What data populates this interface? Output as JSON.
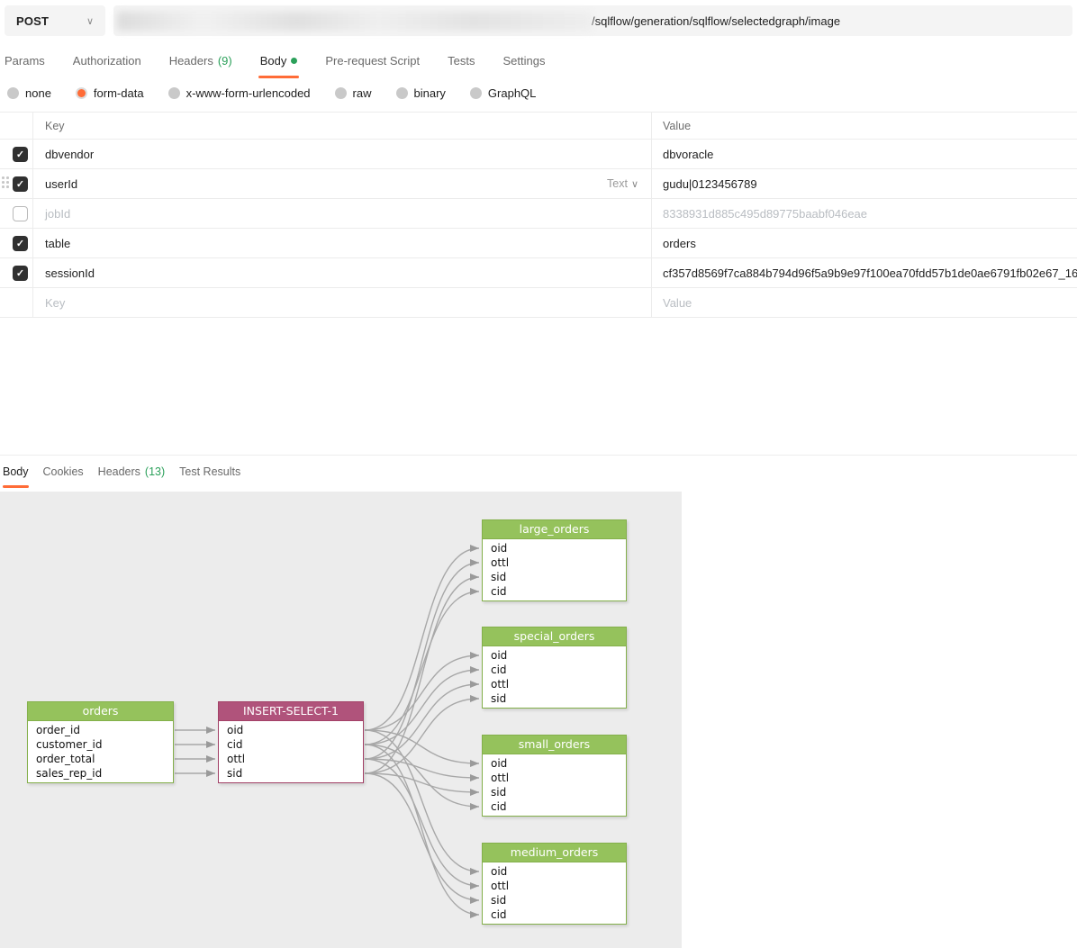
{
  "request": {
    "method": "POST",
    "url_path": "/sqlflow/generation/sqlflow/selectedgraph/image",
    "tabs": [
      {
        "label": "Params"
      },
      {
        "label": "Authorization"
      },
      {
        "label": "Headers",
        "count": "(9)"
      },
      {
        "label": "Body",
        "active": true,
        "dot": true
      },
      {
        "label": "Pre-request Script"
      },
      {
        "label": "Tests"
      },
      {
        "label": "Settings"
      }
    ],
    "body_modes": [
      {
        "label": "none"
      },
      {
        "label": "form-data",
        "selected": true
      },
      {
        "label": "x-www-form-urlencoded"
      },
      {
        "label": "raw"
      },
      {
        "label": "binary"
      },
      {
        "label": "GraphQL"
      }
    ],
    "kv_table": {
      "columns": {
        "key": "Key",
        "value": "Value"
      },
      "rows": [
        {
          "key": "dbvendor",
          "value": "dbvoracle",
          "checked": true
        },
        {
          "key": "userId",
          "value": "gudu|0123456789",
          "checked": true,
          "type_label": "Text"
        },
        {
          "key": "jobId",
          "value": "8338931d885c495d89775baabf046eae",
          "checked": false,
          "muted": true
        },
        {
          "key": "table",
          "value": "orders",
          "checked": true
        },
        {
          "key": "sessionId",
          "value": "cf357d8569f7ca884b794d96f5a9b9e97f100ea70fdd57b1de0ae6791fb02e67_16",
          "checked": true
        },
        {
          "placeholder_key": "Key",
          "placeholder_value": "Value",
          "placeholder": true
        }
      ]
    }
  },
  "response": {
    "tabs": [
      {
        "label": "Body",
        "active": true
      },
      {
        "label": "Cookies"
      },
      {
        "label": "Headers",
        "count": "(13)"
      },
      {
        "label": "Test Results"
      }
    ]
  },
  "colors": {
    "accent_orange": "#ff6c37",
    "count_green": "#2ba05a",
    "table_green_header": "#95c25c",
    "table_green_border": "#84b04b",
    "insert_header": "#b0537b",
    "insert_border": "#a34167",
    "edge_gray": "#a8a8a8",
    "diagram_bg": "#ececec"
  },
  "diagram": {
    "nodes": [
      {
        "id": "orders",
        "title": "orders",
        "kind": "green",
        "fields": [
          "order_id",
          "customer_id",
          "order_total",
          "sales_rep_id"
        ]
      },
      {
        "id": "insert-select-1",
        "title": "INSERT-SELECT-1",
        "kind": "pink",
        "fields": [
          "oid",
          "cid",
          "ottl",
          "sid"
        ]
      },
      {
        "id": "large_orders",
        "title": "large_orders",
        "kind": "green",
        "fields": [
          "oid",
          "ottl",
          "sid",
          "cid"
        ]
      },
      {
        "id": "special_orders",
        "title": "special_orders",
        "kind": "green",
        "fields": [
          "oid",
          "cid",
          "ottl",
          "sid"
        ]
      },
      {
        "id": "small_orders",
        "title": "small_orders",
        "kind": "green",
        "fields": [
          "oid",
          "ottl",
          "sid",
          "cid"
        ]
      },
      {
        "id": "medium_orders",
        "title": "medium_orders",
        "kind": "green",
        "fields": [
          "oid",
          "ottl",
          "sid",
          "cid"
        ]
      }
    ],
    "edges": [
      [
        "orders.order_id",
        "insert-select-1.oid"
      ],
      [
        "orders.customer_id",
        "insert-select-1.cid"
      ],
      [
        "orders.order_total",
        "insert-select-1.ottl"
      ],
      [
        "orders.sales_rep_id",
        "insert-select-1.sid"
      ],
      [
        "insert-select-1.oid",
        "large_orders.oid"
      ],
      [
        "insert-select-1.ottl",
        "large_orders.ottl"
      ],
      [
        "insert-select-1.sid",
        "large_orders.sid"
      ],
      [
        "insert-select-1.cid",
        "large_orders.cid"
      ],
      [
        "insert-select-1.oid",
        "special_orders.oid"
      ],
      [
        "insert-select-1.cid",
        "special_orders.cid"
      ],
      [
        "insert-select-1.ottl",
        "special_orders.ottl"
      ],
      [
        "insert-select-1.sid",
        "special_orders.sid"
      ],
      [
        "insert-select-1.oid",
        "small_orders.oid"
      ],
      [
        "insert-select-1.ottl",
        "small_orders.ottl"
      ],
      [
        "insert-select-1.sid",
        "small_orders.sid"
      ],
      [
        "insert-select-1.cid",
        "small_orders.cid"
      ],
      [
        "insert-select-1.oid",
        "medium_orders.oid"
      ],
      [
        "insert-select-1.ottl",
        "medium_orders.ottl"
      ],
      [
        "insert-select-1.sid",
        "medium_orders.sid"
      ],
      [
        "insert-select-1.cid",
        "medium_orders.cid"
      ]
    ]
  }
}
